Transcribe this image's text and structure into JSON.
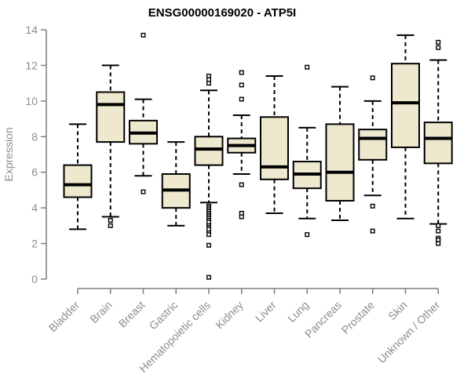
{
  "colors": {
    "background": "#ffffff",
    "box_fill": "#ede8ce",
    "box_stroke": "#000000",
    "axis": "#7f7f7f",
    "tick_label": "#8c8c8c",
    "title": "#000000"
  },
  "chart_data": {
    "type": "boxplot",
    "title": "ENSG00000169020 - ATP5I",
    "xlabel": "",
    "ylabel": "Expression",
    "ylim": [
      0,
      14
    ],
    "yticks": [
      0,
      2,
      4,
      6,
      8,
      10,
      12,
      14
    ],
    "grid": false,
    "legend": "none",
    "categories": [
      "Bladder",
      "Brain",
      "Breast",
      "Gastric",
      "Hematopoietic cells",
      "Kidney",
      "Liver",
      "Lung",
      "Pancreas",
      "Prostate",
      "Skin",
      "Unknown / Other"
    ],
    "series": [
      {
        "name": "Bladder",
        "whisker_low": 2.8,
        "q1": 4.6,
        "median": 5.3,
        "q3": 6.4,
        "whisker_high": 8.7,
        "outliers": []
      },
      {
        "name": "Brain",
        "whisker_low": 3.5,
        "q1": 7.7,
        "median": 9.8,
        "q3": 10.5,
        "whisker_high": 12.0,
        "outliers": [
          3.3,
          3.0
        ]
      },
      {
        "name": "Breast",
        "whisker_low": 5.8,
        "q1": 7.6,
        "median": 8.2,
        "q3": 8.9,
        "whisker_high": 10.1,
        "outliers": [
          13.7,
          4.9
        ]
      },
      {
        "name": "Gastric",
        "whisker_low": 3.0,
        "q1": 4.0,
        "median": 5.0,
        "q3": 5.9,
        "whisker_high": 7.7,
        "outliers": []
      },
      {
        "name": "Hematopoietic cells",
        "whisker_low": 4.3,
        "q1": 6.4,
        "median": 7.3,
        "q3": 8.0,
        "whisker_high": 10.6,
        "outliers": [
          11.4,
          11.2,
          11.0,
          4.1,
          4.0,
          3.9,
          3.8,
          3.7,
          3.6,
          3.5,
          3.4,
          3.3,
          3.2,
          3.0,
          2.9,
          2.8,
          2.6,
          2.5,
          1.9,
          0.1
        ]
      },
      {
        "name": "Kidney",
        "whisker_low": 5.9,
        "q1": 7.1,
        "median": 7.5,
        "q3": 7.9,
        "whisker_high": 9.2,
        "outliers": [
          11.6,
          10.9,
          10.1,
          5.3,
          3.7,
          3.5
        ]
      },
      {
        "name": "Liver",
        "whisker_low": 3.7,
        "q1": 5.6,
        "median": 6.3,
        "q3": 9.1,
        "whisker_high": 11.4,
        "outliers": []
      },
      {
        "name": "Lung",
        "whisker_low": 3.4,
        "q1": 5.1,
        "median": 5.9,
        "q3": 6.6,
        "whisker_high": 8.5,
        "outliers": [
          11.9,
          2.5
        ]
      },
      {
        "name": "Pancreas",
        "whisker_low": 3.3,
        "q1": 4.4,
        "median": 6.0,
        "q3": 8.7,
        "whisker_high": 10.8,
        "outliers": []
      },
      {
        "name": "Prostate",
        "whisker_low": 4.7,
        "q1": 6.7,
        "median": 7.9,
        "q3": 8.4,
        "whisker_high": 10.0,
        "outliers": [
          11.3,
          4.1,
          2.7
        ]
      },
      {
        "name": "Skin",
        "whisker_low": 3.4,
        "q1": 7.4,
        "median": 9.9,
        "q3": 12.1,
        "whisker_high": 13.7,
        "outliers": []
      },
      {
        "name": "Unknown / Other",
        "whisker_low": 3.1,
        "q1": 6.5,
        "median": 7.9,
        "q3": 8.8,
        "whisker_high": 12.3,
        "outliers": [
          13.3,
          13.0,
          3.0,
          2.7,
          2.3,
          2.2,
          2.0
        ]
      }
    ]
  }
}
